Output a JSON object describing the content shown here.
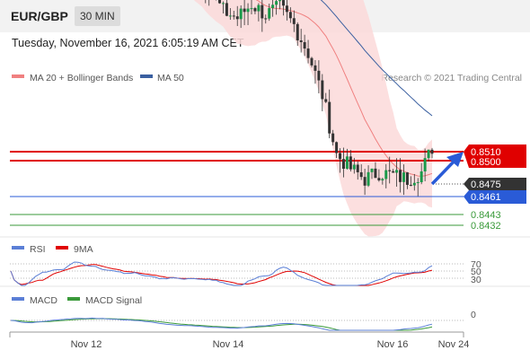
{
  "header": {
    "symbol": "EUR/GBP",
    "timeframe": "30 MIN",
    "datetime": "Tuesday, November 16, 2021 6:05:19 AM CET"
  },
  "legend": {
    "ma20_label": "MA 20 + Bollinger Bands",
    "ma50_label": "MA 50",
    "copyright": "Research © 2021 Trading Central",
    "colors": {
      "ma20": "#f08080",
      "ma50": "#3a5fa0"
    }
  },
  "chart_data": [
    {
      "type": "candlestick",
      "x_ticks": [
        "Nov 12",
        "Nov 14",
        "Nov 16",
        "Nov 24"
      ],
      "price_range": [
        0.8418,
        0.8524
      ],
      "current_price": "0.8475",
      "levels": [
        {
          "value": "0.8510",
          "color": "#e00000",
          "kind": "resistance"
        },
        {
          "value": "0.8500",
          "color": "#e00000",
          "kind": "resistance"
        },
        {
          "value": "0.8461",
          "color": "#2a5bd7",
          "kind": "pivot"
        },
        {
          "value": "0.8443",
          "color": "#3a9a3a",
          "kind": "support"
        },
        {
          "value": "0.8432",
          "color": "#3a9a3a",
          "kind": "support"
        }
      ],
      "close_path": [
        [
          0,
          0.8542
        ],
        [
          3,
          0.8533
        ],
        [
          7,
          0.8539
        ],
        [
          12,
          0.8544
        ],
        [
          18,
          0.8547
        ],
        [
          24,
          0.8546
        ],
        [
          30,
          0.8544
        ],
        [
          36,
          0.8542
        ],
        [
          40,
          0.8536
        ],
        [
          44,
          0.853
        ],
        [
          48,
          0.8528
        ],
        [
          52,
          0.8525
        ],
        [
          56,
          0.852
        ],
        [
          60,
          0.8514
        ],
        [
          64,
          0.8512
        ],
        [
          68,
          0.8516
        ],
        [
          72,
          0.8513
        ],
        [
          76,
          0.8515
        ],
        [
          80,
          0.851
        ],
        [
          84,
          0.8502
        ],
        [
          88,
          0.849
        ],
        [
          92,
          0.8473
        ],
        [
          96,
          0.8469
        ],
        [
          100,
          0.8466
        ],
        [
          104,
          0.8468
        ],
        [
          108,
          0.8467
        ],
        [
          112,
          0.8466
        ],
        [
          116,
          0.8468
        ],
        [
          119,
          0.8475
        ]
      ]
    },
    {
      "type": "line",
      "title": "RSI",
      "signal": "9MA",
      "levels": [
        "70",
        "50",
        "30"
      ],
      "colors": {
        "rsi": "#5b7fd6",
        "ma": "#e00000"
      }
    },
    {
      "type": "line",
      "title": "MACD",
      "signal": "MACD Signal",
      "levels": [
        "0"
      ],
      "colors": {
        "macd": "#5b7fd6",
        "signal": "#3a9a3a"
      }
    }
  ]
}
